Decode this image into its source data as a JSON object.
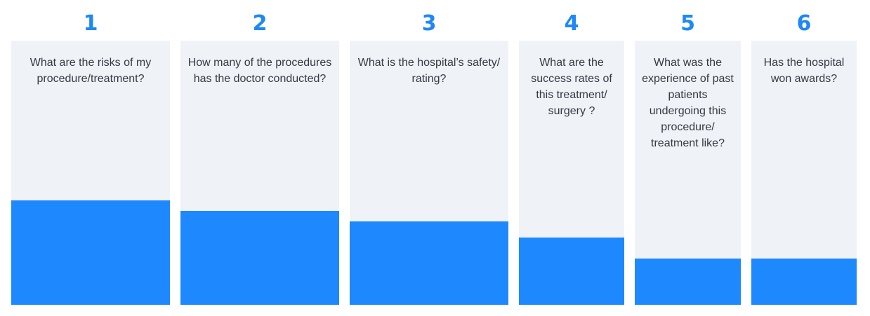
{
  "chart_data": {
    "type": "bar",
    "title": "",
    "xlabel": "",
    "ylabel": "",
    "ylim": [
      0,
      100
    ],
    "grid": false,
    "legend": "none",
    "bar_color": "#1e88ff",
    "panel_color": "#eff2f7",
    "rank_color": "#1e88f5",
    "categories": [
      {
        "rank": "1",
        "question": "What are the risks of my procedure/treatment?",
        "value": 39.5
      },
      {
        "rank": "2",
        "question": "How many of the procedures has the doctor conducted?",
        "value": 35.5
      },
      {
        "rank": "3",
        "question": "What is the hospital’s safety/ rating?",
        "value": 31.5
      },
      {
        "rank": "4",
        "question": "What are the success rates of this treatment/ surgery ?",
        "value": 25.5
      },
      {
        "rank": "5",
        "question": "What was the experience of past patients undergoing this procedure/ treatment like?",
        "value": 17.5
      },
      {
        "rank": "6",
        "question": "Has the hospital won awards?",
        "value": 17.5
      }
    ]
  }
}
